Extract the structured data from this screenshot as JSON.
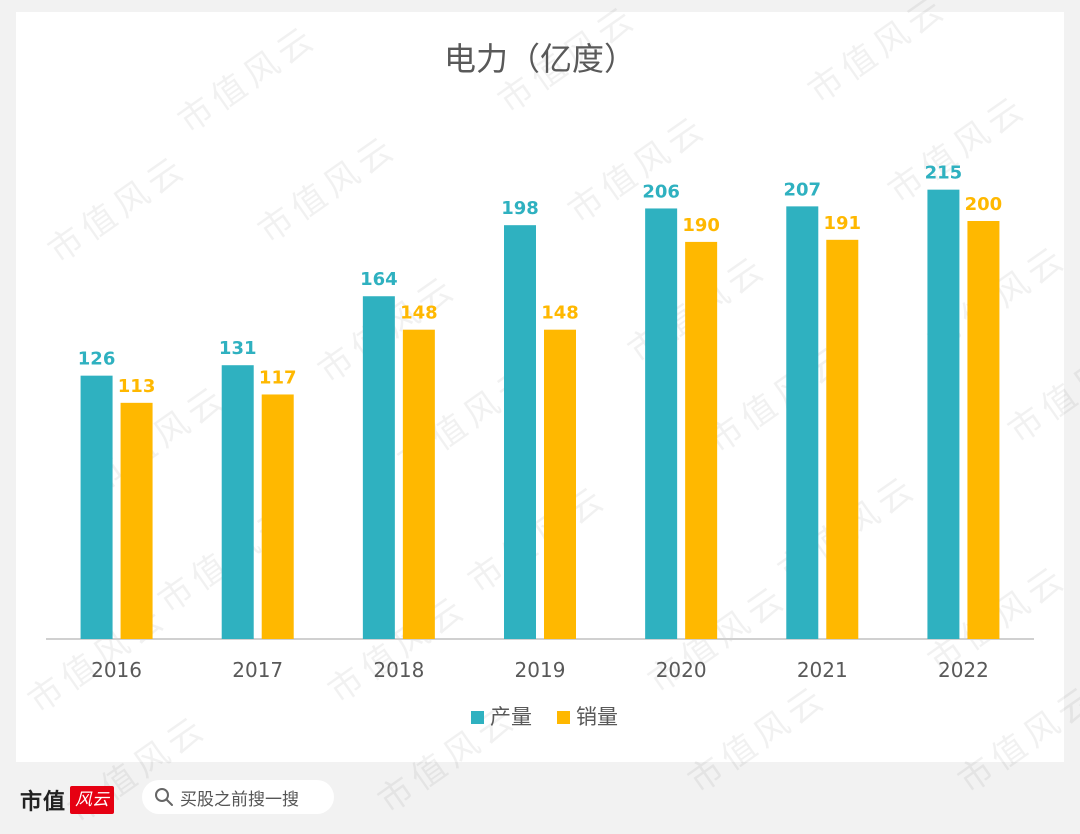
{
  "chart_data": {
    "type": "bar",
    "title": "电力（亿度）",
    "categories": [
      "2016",
      "2017",
      "2018",
      "2019",
      "2020",
      "2021",
      "2022"
    ],
    "series": [
      {
        "name": "产量",
        "color": "#2fb1c0",
        "values": [
          126,
          131,
          164,
          198,
          206,
          207,
          215
        ]
      },
      {
        "name": "销量",
        "color": "#ffb800",
        "values": [
          113,
          117,
          148,
          148,
          190,
          191,
          200
        ]
      }
    ],
    "ylim": [
      0,
      300
    ],
    "grid": false,
    "legend_position": "bottom"
  },
  "watermark_text": "市值风云",
  "footer": {
    "brand": "市值",
    "brand_stamp": "风云",
    "search_text": "买股之前搜一搜"
  }
}
